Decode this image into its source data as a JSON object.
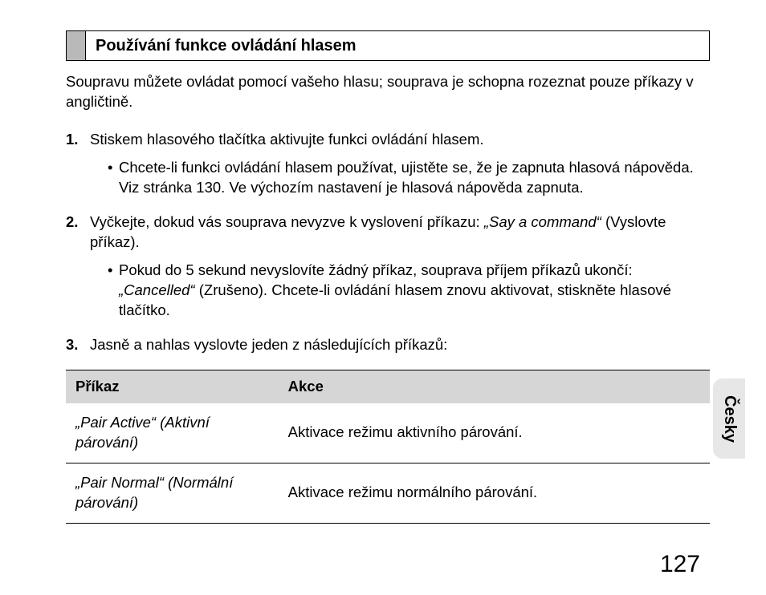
{
  "section": {
    "title": "Používání funkce ovládání hlasem"
  },
  "intro": "Soupravu můžete ovládat pomocí vašeho hlasu; souprava je schopna rozeznat pouze příkazy v angličtině.",
  "steps": {
    "s1": {
      "text": "Stiskem hlasového tlačítka aktivujte funkci ovládání hlasem.",
      "sub1": "Chcete-li funkci ovládání hlasem používat, ujistěte se, že je zapnuta hlasová nápověda. Viz stránka 130. Ve výchozím nastavení je hlasová nápověda zapnuta."
    },
    "s2": {
      "pre": "Vyčkejte, dokud vás souprava nevyzve k vyslovení příkazu: ",
      "quote": "„Say a command“",
      "post": " (Vyslovte příkaz).",
      "sub1_pre": "Pokud do 5 sekund nevyslovíte žádný příkaz, souprava příjem příkazů ukončí: ",
      "sub1_quote": "„Cancelled“",
      "sub1_post": " (Zrušeno). Chcete-li ovládání hlasem znovu aktivovat, stiskněte hlasové tlačítko."
    },
    "s3": {
      "text": "Jasně a nahlas vyslovte jeden z následujících příkazů:"
    }
  },
  "table": {
    "headers": {
      "cmd": "Příkaz",
      "action": "Akce"
    },
    "rows": {
      "r1": {
        "cmd": "„Pair Active“ (Aktivní párování)",
        "action": "Aktivace režimu aktivního párování."
      },
      "r2": {
        "cmd": "„Pair Normal“ (Normální párování)",
        "action": "Aktivace režimu normálního párování."
      }
    }
  },
  "sideTab": "Česky",
  "pageNumber": "127"
}
